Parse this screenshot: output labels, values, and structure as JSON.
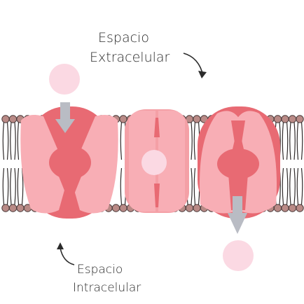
{
  "labels": {
    "extracellular_line1": "Espacio",
    "extracellular_line2": "Extracelular",
    "intracellular_line1": "Espacio",
    "intracellular_line2": "Intracelular"
  },
  "colors": {
    "background": "#ffffff",
    "lipid_head": "#b98a86",
    "lipid_head_stroke": "#4a3a3a",
    "lipid_tail": "#2f2a2a",
    "protein_dark": "#e86a73",
    "protein_light": "#f8aeb5",
    "protein_mid": "#f4a0a6",
    "molecule": "#fbd9e3",
    "arrow": "#b9bcc4",
    "text": "#2b2b2b"
  },
  "icons": [
    "curved-arrow-down-icon",
    "curved-arrow-up-icon",
    "transport-arrow-down-icon"
  ]
}
